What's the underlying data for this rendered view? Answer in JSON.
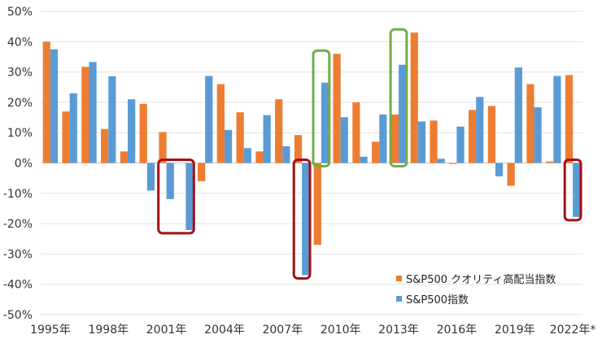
{
  "chart_data": {
    "type": "bar",
    "title": "",
    "xlabel": "",
    "ylabel": "",
    "ylim": [
      -50,
      50
    ],
    "yticks": [
      -50,
      -40,
      -30,
      -20,
      -10,
      0,
      10,
      20,
      30,
      40,
      50
    ],
    "ytick_labels": [
      "-50%",
      "-40%",
      "-30%",
      "-20%",
      "-10%",
      "0%",
      "10%",
      "20%",
      "30%",
      "40%",
      "50%"
    ],
    "grid": true,
    "categories": [
      "1995",
      "1996",
      "1997",
      "1998",
      "1999",
      "2000",
      "2001",
      "2002",
      "2003",
      "2004",
      "2005",
      "2006",
      "2007",
      "2008",
      "2009",
      "2010",
      "2011",
      "2012",
      "2013",
      "2014",
      "2015",
      "2016",
      "2017",
      "2018",
      "2019",
      "2020",
      "2021",
      "2022"
    ],
    "xtick_labels": [
      {
        "index": 0,
        "label": "1995年"
      },
      {
        "index": 3,
        "label": "1998年"
      },
      {
        "index": 6,
        "label": "2001年"
      },
      {
        "index": 9,
        "label": "2004年"
      },
      {
        "index": 12,
        "label": "2007年"
      },
      {
        "index": 15,
        "label": "2010年"
      },
      {
        "index": 18,
        "label": "2013年"
      },
      {
        "index": 21,
        "label": "2016年"
      },
      {
        "index": 24,
        "label": "2019年"
      },
      {
        "index": 27,
        "label": "2022年*"
      }
    ],
    "series": [
      {
        "name": "S&P500 クオリティ高配当指数",
        "color": "#ED7D31",
        "values": [
          40.0,
          17.0,
          31.7,
          11.2,
          3.8,
          19.5,
          10.2,
          0,
          -6.0,
          26.0,
          16.7,
          3.8,
          21.0,
          9.2,
          -27.0,
          36.0,
          20.0,
          7.0,
          16.0,
          43.0,
          14.0,
          -0.3,
          17.5,
          18.8,
          -7.5,
          26.0,
          0.5,
          29.0
        ]
      },
      {
        "name": "S&P500指数",
        "color": "#5B9BD5",
        "values": [
          37.5,
          23.0,
          33.3,
          28.6,
          21.0,
          -9.1,
          -11.9,
          -22.1,
          28.7,
          10.9,
          4.9,
          15.8,
          5.5,
          -37.0,
          26.5,
          15.1,
          2.1,
          16.0,
          32.4,
          13.7,
          1.4,
          12.0,
          21.8,
          -4.4,
          31.5,
          18.4,
          28.7,
          -17.8
        ]
      }
    ],
    "legend": {
      "position": "bottom-right"
    },
    "annotations": [
      {
        "type": "box",
        "color": "#A50F15",
        "from_index": 6,
        "to_index": 7,
        "range": [
          -22.1,
          0
        ]
      },
      {
        "type": "box",
        "color": "#A50F15",
        "from_index": 13,
        "to_index": 13,
        "range": [
          -37,
          0
        ]
      },
      {
        "type": "box",
        "color": "#A50F15",
        "from_index": 27,
        "to_index": 27,
        "range": [
          -17.8,
          0
        ]
      },
      {
        "type": "box",
        "color": "#70AD47",
        "from_index": 14,
        "to_index": 14,
        "range": [
          0,
          36
        ]
      },
      {
        "type": "box",
        "color": "#70AD47",
        "from_index": 18,
        "to_index": 18,
        "range": [
          0,
          43
        ]
      }
    ]
  }
}
